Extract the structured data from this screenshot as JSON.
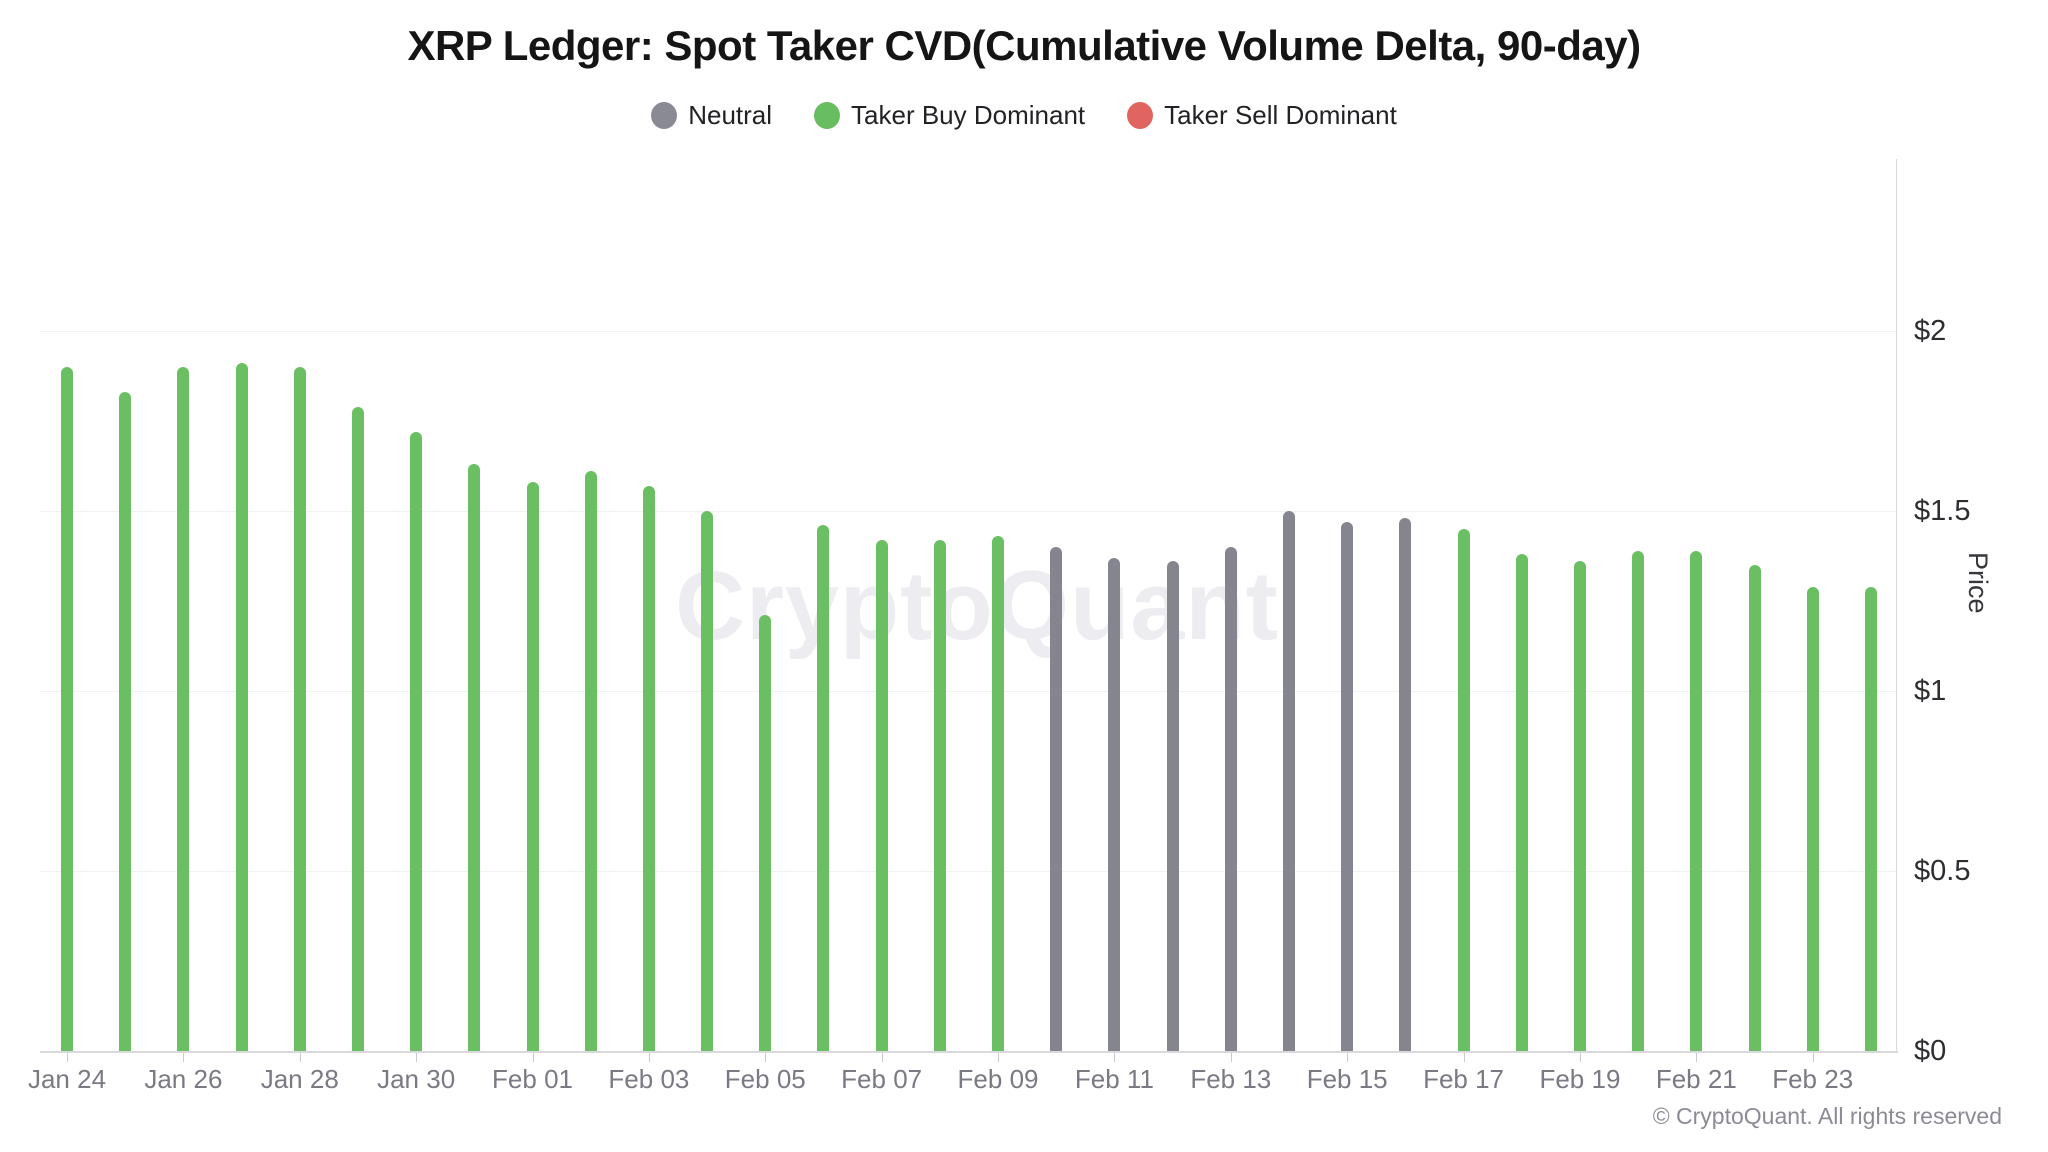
{
  "page": {
    "title": "XRP Ledger: Spot Taker CVD(Cumulative Volume Delta, 90-day)",
    "watermark": "CryptoQuant",
    "copyright": "© CryptoQuant. All rights reserved"
  },
  "legend": {
    "items": [
      {
        "key": "neutral",
        "label": "Neutral",
        "color": "#8a8a94"
      },
      {
        "key": "buy",
        "label": "Taker Buy Dominant",
        "color": "#68bd60"
      },
      {
        "key": "sell",
        "label": "Taker Sell Dominant",
        "color": "#e06561"
      }
    ]
  },
  "chart_data": {
    "type": "bar",
    "title": "XRP Ledger: Spot Taker CVD(Cumulative Volume Delta, 90-day)",
    "xlabel": "",
    "ylabel": "Price",
    "ylim": [
      0,
      2.48
    ],
    "grid": "horizontal",
    "legend_position": "top",
    "y_ticks": [
      {
        "value": 0,
        "label": "$0"
      },
      {
        "value": 0.5,
        "label": "$0.5"
      },
      {
        "value": 1,
        "label": "$1"
      },
      {
        "value": 1.5,
        "label": "$1.5"
      },
      {
        "value": 2,
        "label": "$2"
      }
    ],
    "x_tick_labels": [
      "Jan 24",
      "Jan 26",
      "Jan 28",
      "Jan 30",
      "Feb 01",
      "Feb 03",
      "Feb 05",
      "Feb 07",
      "Feb 09",
      "Feb 11",
      "Feb 13",
      "Feb 15",
      "Feb 17",
      "Feb 19",
      "Feb 21",
      "Feb 23"
    ],
    "categories": [
      "Jan 24",
      "Jan 25",
      "Jan 26",
      "Jan 27",
      "Jan 28",
      "Jan 29",
      "Jan 30",
      "Jan 31",
      "Feb 01",
      "Feb 02",
      "Feb 03",
      "Feb 04",
      "Feb 05",
      "Feb 06",
      "Feb 07",
      "Feb 08",
      "Feb 09",
      "Feb 10",
      "Feb 11",
      "Feb 12",
      "Feb 13",
      "Feb 14",
      "Feb 15",
      "Feb 16",
      "Feb 17",
      "Feb 18",
      "Feb 19",
      "Feb 20",
      "Feb 21",
      "Feb 22",
      "Feb 23",
      "Feb 24"
    ],
    "values": [
      1.9,
      1.83,
      1.9,
      1.91,
      1.9,
      1.79,
      1.72,
      1.63,
      1.58,
      1.61,
      1.57,
      1.5,
      1.21,
      1.46,
      1.42,
      1.42,
      1.43,
      1.4,
      1.37,
      1.36,
      1.4,
      1.5,
      1.47,
      1.48,
      1.45,
      1.38,
      1.36,
      1.39,
      1.39,
      1.35,
      1.29,
      1.29
    ],
    "statuses": [
      "buy",
      "buy",
      "buy",
      "buy",
      "buy",
      "buy",
      "buy",
      "buy",
      "buy",
      "buy",
      "buy",
      "buy",
      "buy",
      "buy",
      "buy",
      "buy",
      "buy",
      "neutral",
      "neutral",
      "neutral",
      "neutral",
      "neutral",
      "neutral",
      "neutral",
      "buy",
      "buy",
      "buy",
      "buy",
      "buy",
      "buy",
      "buy",
      "buy"
    ],
    "colors": {
      "neutral": "#85858f",
      "buy": "#6abf62",
      "sell": "#e06561"
    }
  }
}
